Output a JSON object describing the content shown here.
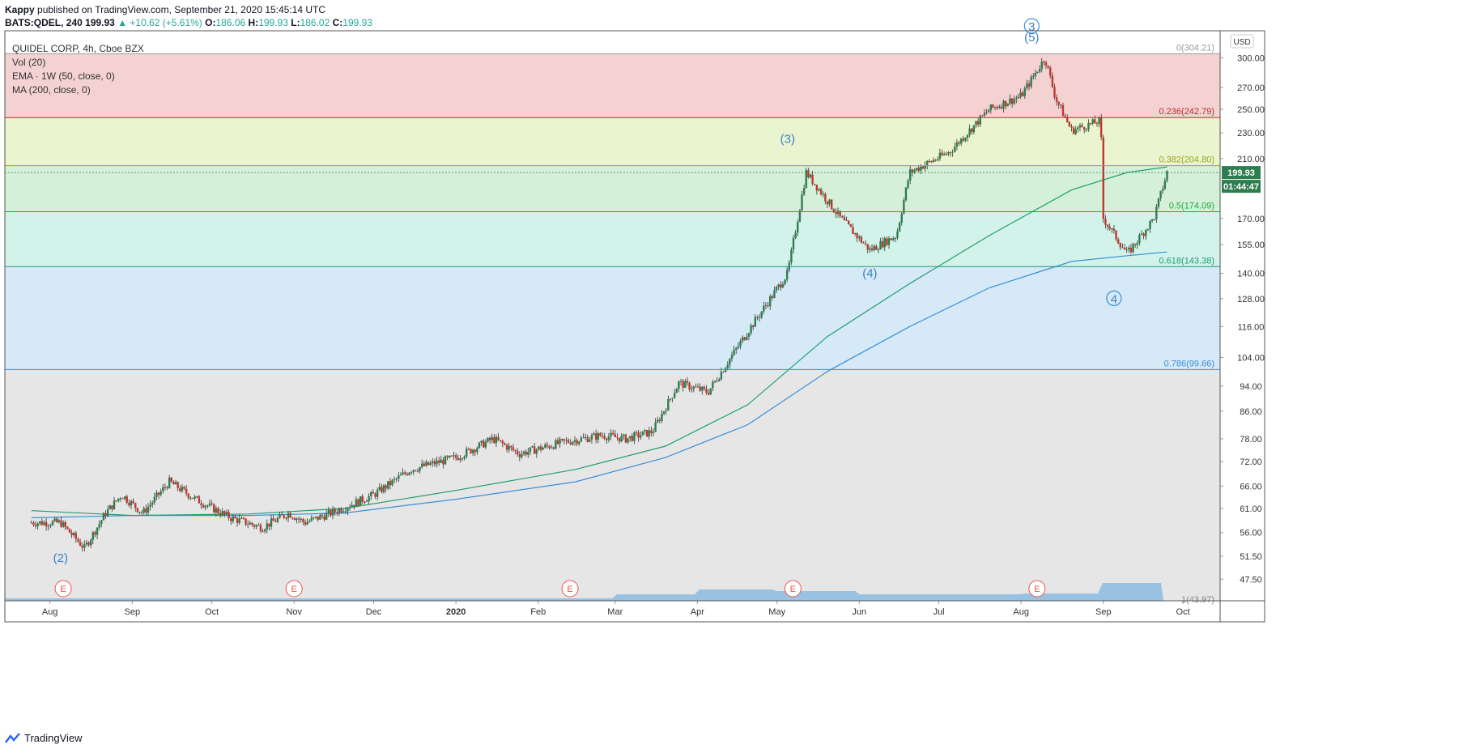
{
  "header": {
    "author": "Kappy",
    "published_text": "published on TradingView.com, September 21, 2020 15:45:14 UTC",
    "symbol": "BATS:QDEL, 240",
    "last": "199.93",
    "change": "▲ +10.62 (+5.61%)",
    "o_label": "O:",
    "o_val": "186.06",
    "h_label": "H:",
    "h_val": "199.93",
    "l_label": "L:",
    "l_val": "186.02",
    "c_label": "C:",
    "c_val": "199.93"
  },
  "legend": {
    "title": "QUIDEL CORP, 4h, Cboe BZX",
    "vol": "Vol (20)",
    "ema": "EMA · 1W (50, close, 0)",
    "ma": "MA (200, close, 0)"
  },
  "currency": "USD",
  "price_badge": "199.93",
  "time_badge": "01:44:47",
  "footer": {
    "brand": "TradingView"
  },
  "colors": {
    "up": "#26a69a",
    "down": "#ef5350",
    "ema": "#1f9e6e",
    "ma": "#3a8fd8",
    "zone_red": "#f4d2d2",
    "zone_yellow": "#eaf4cf",
    "zone_green": "#d4f0d9",
    "zone_teal": "#d3f2ea",
    "zone_blue": "#d6e9f6",
    "zone_gray": "#e6e6e6"
  },
  "chart_data": {
    "type": "candlestick",
    "y_scale": "log",
    "ylim": [
      44,
      330
    ],
    "y_ticks": [
      "300.00",
      "270.00",
      "250.00",
      "230.00",
      "210.00",
      "170.00",
      "155.00",
      "140.00",
      "128.00",
      "116.00",
      "104.00",
      "94.00",
      "86.00",
      "78.00",
      "72.00",
      "66.00",
      "61.00",
      "56.00",
      "51.50",
      "47.50"
    ],
    "x_ticks": [
      "Aug",
      "Sep",
      "Oct",
      "Nov",
      "Dec",
      "2020",
      "Feb",
      "Mar",
      "Apr",
      "May",
      "Jun",
      "Jul",
      "Aug",
      "Sep",
      "Oct"
    ],
    "fib_levels": [
      {
        "label": "0(304.21)",
        "value": 304.21
      },
      {
        "label": "0.236(242.79)",
        "value": 242.79
      },
      {
        "label": "0.382(204.80)",
        "value": 204.8
      },
      {
        "label": "0.5(174.09)",
        "value": 174.09
      },
      {
        "label": "0.618(143.38)",
        "value": 143.38
      },
      {
        "label": "0.786(99.66)",
        "value": 99.66
      },
      {
        "label": "1(43.97)",
        "value": 43.97
      }
    ],
    "wave_labels": [
      {
        "text": "(2)",
        "month": "Aug 2019",
        "price": 50.5
      },
      {
        "text": "(3)",
        "month": "May 2020",
        "price": 222
      },
      {
        "text": "(4)",
        "month": "Jun 2020",
        "price": 138
      },
      {
        "text": "3",
        "month": "Aug 2020",
        "price": 330
      },
      {
        "text": "(5)",
        "month": "Aug 2020",
        "price": 318
      },
      {
        "text": "4",
        "month": "Sep 2020",
        "price": 126
      }
    ],
    "earnings_marker": "E",
    "price_path": [
      [
        "2019-07-25",
        58
      ],
      [
        "2019-08-05",
        58
      ],
      [
        "2019-08-14",
        53
      ],
      [
        "2019-08-22",
        60
      ],
      [
        "2019-08-28",
        64
      ],
      [
        "2019-09-05",
        60
      ],
      [
        "2019-09-15",
        67
      ],
      [
        "2019-09-25",
        63
      ],
      [
        "2019-10-08",
        59
      ],
      [
        "2019-10-20",
        57
      ],
      [
        "2019-10-30",
        60
      ],
      [
        "2019-11-05",
        58
      ],
      [
        "2019-11-15",
        60
      ],
      [
        "2019-12-01",
        64
      ],
      [
        "2019-12-15",
        70
      ],
      [
        "2020-01-01",
        73
      ],
      [
        "2020-01-15",
        78
      ],
      [
        "2020-01-25",
        74
      ],
      [
        "2020-02-10",
        77
      ],
      [
        "2020-02-25",
        79
      ],
      [
        "2020-03-05",
        78
      ],
      [
        "2020-03-15",
        80
      ],
      [
        "2020-03-25",
        95
      ],
      [
        "2020-04-05",
        92
      ],
      [
        "2020-04-20",
        114
      ],
      [
        "2020-05-05",
        140
      ],
      [
        "2020-05-12",
        200
      ],
      [
        "2020-05-25",
        170
      ],
      [
        "2020-06-05",
        152
      ],
      [
        "2020-06-15",
        160
      ],
      [
        "2020-06-20",
        200
      ],
      [
        "2020-07-05",
        215
      ],
      [
        "2020-07-20",
        250
      ],
      [
        "2020-08-01",
        262
      ],
      [
        "2020-08-10",
        300
      ],
      [
        "2020-08-14",
        260
      ],
      [
        "2020-08-20",
        232
      ],
      [
        "2020-08-31",
        240
      ],
      [
        "2020-09-01",
        170
      ],
      [
        "2020-09-10",
        150
      ],
      [
        "2020-09-20",
        170
      ],
      [
        "2020-09-25",
        200
      ]
    ],
    "ema_path": [
      [
        "2019-07-25",
        60.5
      ],
      [
        "2019-09-01",
        59.5
      ],
      [
        "2019-10-15",
        59.8
      ],
      [
        "2019-11-20",
        61
      ],
      [
        "2020-01-01",
        65
      ],
      [
        "2020-02-15",
        70
      ],
      [
        "2020-03-20",
        76
      ],
      [
        "2020-04-20",
        88
      ],
      [
        "2020-05-20",
        112
      ],
      [
        "2020-06-20",
        135
      ],
      [
        "2020-07-20",
        160
      ],
      [
        "2020-08-20",
        188
      ],
      [
        "2020-09-10",
        200
      ],
      [
        "2020-09-25",
        204
      ]
    ],
    "ma_path": [
      [
        "2019-07-25",
        59
      ],
      [
        "2019-09-01",
        59.5
      ],
      [
        "2019-10-15",
        59.5
      ],
      [
        "2019-11-20",
        60
      ],
      [
        "2020-01-01",
        63
      ],
      [
        "2020-02-15",
        67
      ],
      [
        "2020-03-20",
        73
      ],
      [
        "2020-04-20",
        82
      ],
      [
        "2020-05-20",
        99
      ],
      [
        "2020-06-20",
        116
      ],
      [
        "2020-07-20",
        133
      ],
      [
        "2020-08-20",
        146
      ],
      [
        "2020-09-10",
        149
      ],
      [
        "2020-09-25",
        151
      ]
    ]
  }
}
